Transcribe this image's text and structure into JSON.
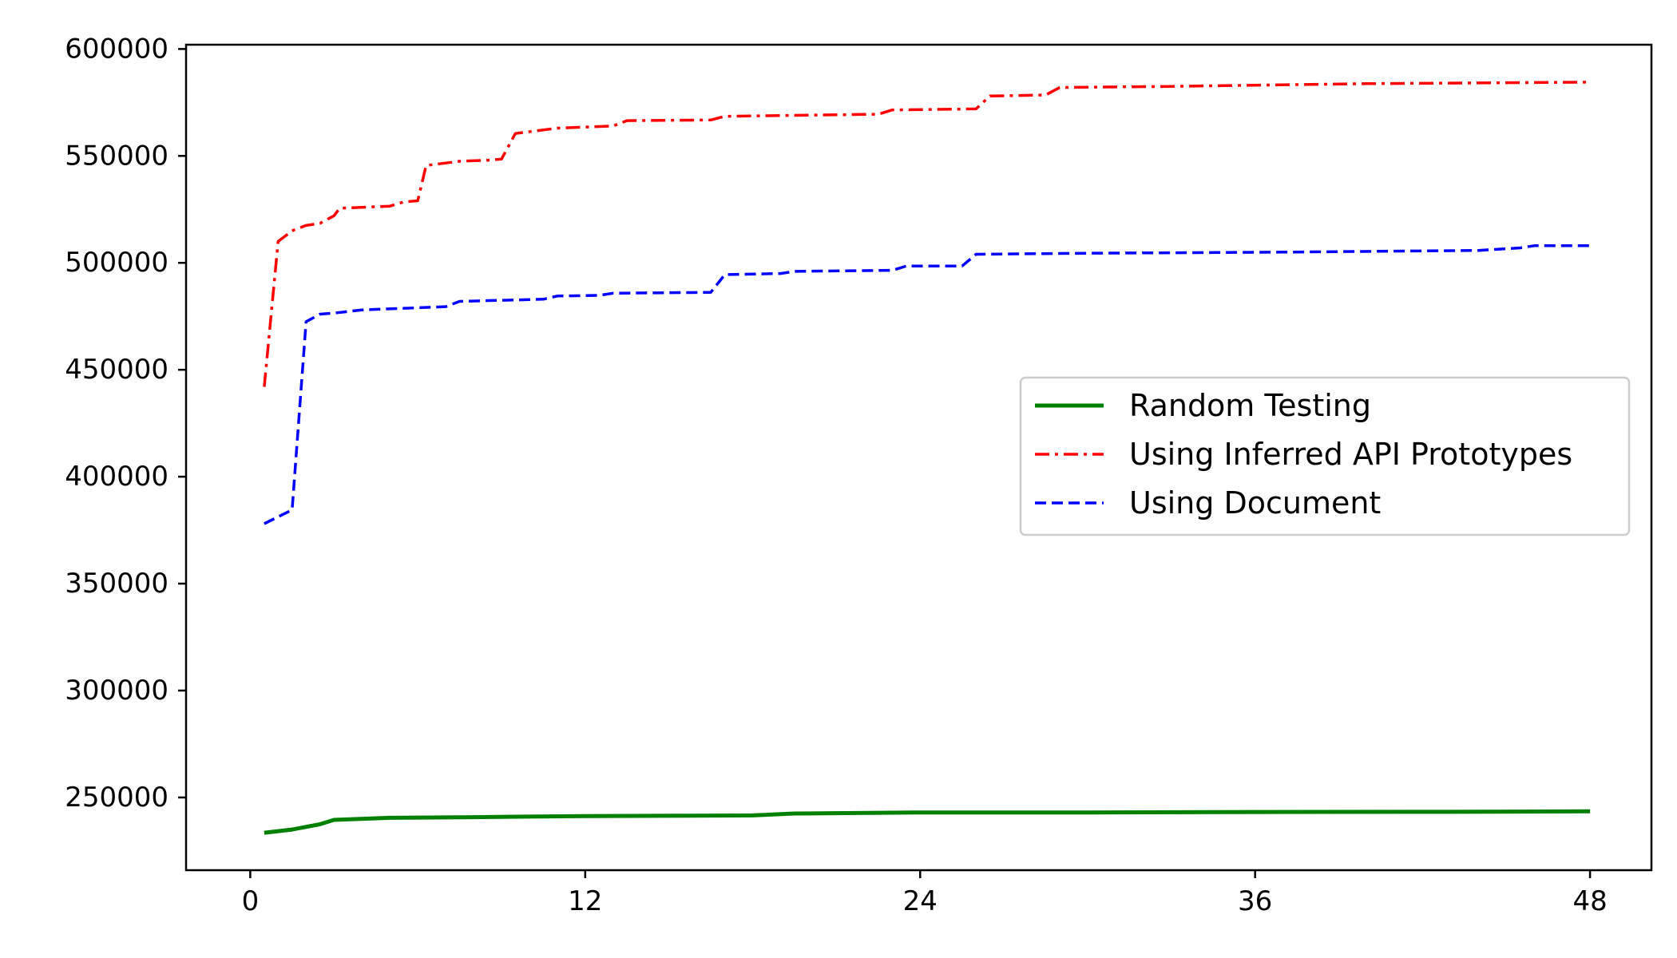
{
  "chart_data": {
    "type": "line",
    "title": "",
    "xlabel": "",
    "ylabel": "",
    "xlim": [
      -2.3,
      50.2
    ],
    "ylim": [
      216000,
      602000
    ],
    "xticks": [
      0,
      12,
      24,
      36,
      48
    ],
    "xtick_labels": [
      "0",
      "12",
      "24",
      "36",
      "48"
    ],
    "yticks": [
      250000,
      300000,
      350000,
      400000,
      450000,
      500000,
      550000,
      600000
    ],
    "ytick_labels": [
      "250000",
      "300000",
      "350000",
      "400000",
      "450000",
      "500000",
      "550000",
      "600000"
    ],
    "grid": false,
    "legend_position": "center-right",
    "series": [
      {
        "name": "Random Testing",
        "color": "#008000",
        "style": "solid",
        "points": [
          [
            0.5,
            233500
          ],
          [
            1.5,
            235000
          ],
          [
            2.5,
            237500
          ],
          [
            3.0,
            239500
          ],
          [
            5.0,
            240500
          ],
          [
            8.0,
            240800
          ],
          [
            12.0,
            241300
          ],
          [
            18.0,
            241600
          ],
          [
            19.5,
            242500
          ],
          [
            24.0,
            243000
          ],
          [
            30.0,
            243000
          ],
          [
            36.0,
            243200
          ],
          [
            43.0,
            243300
          ],
          [
            48.0,
            243500
          ]
        ]
      },
      {
        "name": "Using Inferred API Prototypes",
        "color": "#ff0000",
        "style": "dashdot",
        "points": [
          [
            0.5,
            442000
          ],
          [
            1.0,
            510000
          ],
          [
            1.5,
            515000
          ],
          [
            2.0,
            517500
          ],
          [
            2.5,
            518500
          ],
          [
            3.0,
            522000
          ],
          [
            3.2,
            525500
          ],
          [
            5.0,
            526500
          ],
          [
            5.5,
            528500
          ],
          [
            6.0,
            529000
          ],
          [
            6.3,
            545500
          ],
          [
            7.5,
            547500
          ],
          [
            8.5,
            548000
          ],
          [
            9.0,
            548500
          ],
          [
            9.5,
            560500
          ],
          [
            11.0,
            563000
          ],
          [
            13.0,
            564000
          ],
          [
            13.5,
            566500
          ],
          [
            16.5,
            566800
          ],
          [
            17.0,
            568500
          ],
          [
            22.5,
            569500
          ],
          [
            23.0,
            571500
          ],
          [
            26.0,
            572000
          ],
          [
            26.5,
            578000
          ],
          [
            28.5,
            578500
          ],
          [
            29.0,
            582000
          ],
          [
            33.0,
            582500
          ],
          [
            40.0,
            583800
          ],
          [
            48.0,
            584500
          ]
        ]
      },
      {
        "name": "Using Document",
        "color": "#0000ff",
        "style": "dashed",
        "points": [
          [
            0.5,
            378000
          ],
          [
            1.5,
            384500
          ],
          [
            2.0,
            472500
          ],
          [
            2.5,
            476000
          ],
          [
            3.0,
            476500
          ],
          [
            4.0,
            478000
          ],
          [
            6.0,
            479000
          ],
          [
            7.0,
            479500
          ],
          [
            7.5,
            482000
          ],
          [
            10.5,
            483000
          ],
          [
            11.0,
            484500
          ],
          [
            12.5,
            484800
          ],
          [
            13.0,
            485800
          ],
          [
            16.5,
            486200
          ],
          [
            17.0,
            494500
          ],
          [
            19.0,
            495000
          ],
          [
            19.5,
            496000
          ],
          [
            23.0,
            496500
          ],
          [
            23.5,
            498500
          ],
          [
            25.5,
            498500
          ],
          [
            26.0,
            504000
          ],
          [
            30.0,
            504500
          ],
          [
            37.0,
            505000
          ],
          [
            44.0,
            505800
          ],
          [
            45.5,
            507000
          ],
          [
            46.0,
            508000
          ],
          [
            48.0,
            508000
          ]
        ]
      }
    ]
  }
}
